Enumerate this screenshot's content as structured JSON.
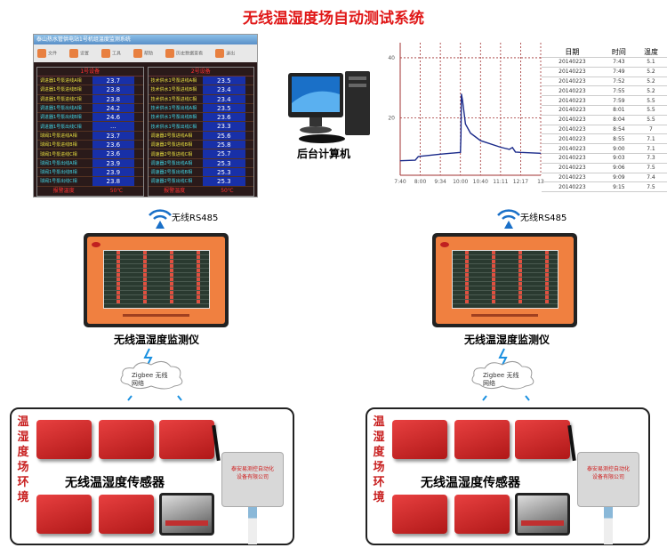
{
  "title": "无线温湿度场自动测试系统",
  "screen": {
    "titlebar": "泰山热水管供电站1号机组温度监测系统",
    "tools": [
      "文件",
      "设置",
      "工具",
      "帮助",
      "历史数据查看",
      "退出"
    ],
    "panels": [
      {
        "header": "1号设备",
        "rows": [
          {
            "label": "调进器1号泵进线A相",
            "value": "23.7"
          },
          {
            "label": "调进器1号泵进线B相",
            "value": "23.8"
          },
          {
            "label": "调进器1号泵进线C相",
            "value": "23.8"
          },
          {
            "label": "调进器1号泵出线A相",
            "value": "24.2"
          },
          {
            "label": "调进器1号泵出线B相",
            "value": "24.6"
          },
          {
            "label": "调进器1号泵出线C相",
            "value": "..."
          },
          {
            "label": "球阀1号泵进线A相",
            "value": "23.7"
          },
          {
            "label": "球阀1号泵进线B相",
            "value": "23.6"
          },
          {
            "label": "球阀1号泵进线C相",
            "value": "23.6"
          },
          {
            "label": "球阀1号泵出线A相",
            "value": "23.9"
          },
          {
            "label": "球阀1号泵出线B相",
            "value": "23.9"
          },
          {
            "label": "球阀1号泵出线C相",
            "value": "23.8"
          }
        ],
        "footer_label": "报警温度",
        "footer_value": "50℃"
      },
      {
        "header": "2号设备",
        "rows": [
          {
            "label": "技术供水1号泵进线A相",
            "value": "23.5"
          },
          {
            "label": "技术供水1号泵进线B相",
            "value": "23.4"
          },
          {
            "label": "技术供水1号泵进线C相",
            "value": "23.4"
          },
          {
            "label": "技术供水1号泵出线A相",
            "value": "23.5"
          },
          {
            "label": "技术供水1号泵出线B相",
            "value": "23.6"
          },
          {
            "label": "技术供水1号泵出线C相",
            "value": "23.3"
          },
          {
            "label": "调速器2号泵进线A相",
            "value": "25.6"
          },
          {
            "label": "调速器2号泵进线B相",
            "value": "25.8"
          },
          {
            "label": "调速器2号泵进线C相",
            "value": "25.7"
          },
          {
            "label": "调速器2号泵出线A相",
            "value": "25.3"
          },
          {
            "label": "调速器2号泵出线B相",
            "value": "25.3"
          },
          {
            "label": "调速器2号泵出线C相",
            "value": "25.3"
          }
        ],
        "footer_label": "报警温度",
        "footer_value": "50℃"
      }
    ]
  },
  "computer_label": "后台计算机",
  "chart_data": {
    "type": "line",
    "x_ticks": [
      "7:40",
      "8:00",
      "9:34",
      "10:00",
      "10:40",
      "11:11",
      "12:17",
      "13"
    ],
    "y_ticks": [
      20,
      40
    ],
    "ylim": [
      1,
      45
    ],
    "grid": true,
    "line_color": "#1a2a8a",
    "series": [
      {
        "x": [
          "7:40",
          "7:55",
          "7:58",
          "8:00",
          "9:34",
          "10:00",
          "10:01",
          "10:02",
          "10:04",
          "10:10",
          "10:20",
          "10:40",
          "11:11",
          "11:40",
          "11:50",
          "12:00",
          "12:17",
          "13:00"
        ],
        "values": [
          5.8,
          6.0,
          7.2,
          7.3,
          8.0,
          8.6,
          14,
          28,
          26,
          18,
          15,
          12.5,
          10.3,
          9.6,
          10.2,
          8.7,
          8.6,
          8.3
        ]
      }
    ]
  },
  "table": {
    "headers": [
      "日期",
      "时间",
      "温度"
    ],
    "rows": [
      [
        "20140223",
        "7:43",
        "5.1"
      ],
      [
        "20140223",
        "7:49",
        "5.2"
      ],
      [
        "20140223",
        "7:52",
        "5.2"
      ],
      [
        "20140223",
        "7:55",
        "5.2"
      ],
      [
        "20140223",
        "7:59",
        "5.5"
      ],
      [
        "20140223",
        "8:01",
        "5.5"
      ],
      [
        "20140223",
        "8:04",
        "5.5"
      ],
      [
        "20140223",
        "8:54",
        "7"
      ],
      [
        "20140223",
        "8:55",
        "7.1"
      ],
      [
        "20140223",
        "9:00",
        "7.1"
      ],
      [
        "20140223",
        "9:03",
        "7.3"
      ],
      [
        "20140223",
        "9:06",
        "7.5"
      ],
      [
        "20140223",
        "9:09",
        "7.4"
      ],
      [
        "20140223",
        "9:15",
        "7.5"
      ]
    ]
  },
  "link_label": "无线RS485",
  "monitor_label": "无线温湿度监测仪",
  "cloud": {
    "line1": "Zigbee 无线",
    "line2": "网络"
  },
  "env_label": "温湿度场环境",
  "sensor_label": "无线温湿度传感器",
  "device_text": {
    "line1": "泰安易测控自动化",
    "line2": "设备有限公司"
  },
  "colors": {
    "title": "#e01818",
    "monitor": "#f08040",
    "sensor": "#d02828"
  }
}
